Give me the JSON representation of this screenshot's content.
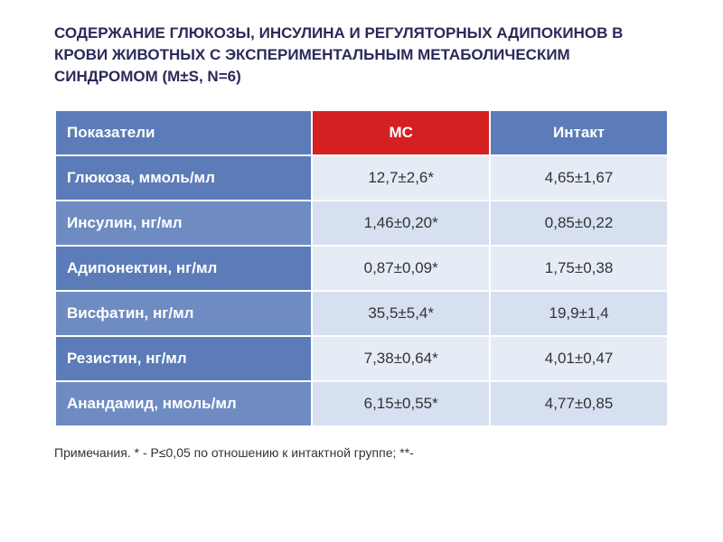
{
  "title": "СОДЕРЖАНИЕ ГЛЮКОЗЫ, ИНСУЛИНА И РЕГУЛЯТОРНЫХ АДИПОКИНОВ В КРОВИ ЖИВОТНЫХ С ЭКСПЕРИМЕНТАЛЬНЫМ МЕТАБОЛИЧЕСКИМ СИНДРОМОМ (M±s, n=6)",
  "table": {
    "type": "table",
    "header": {
      "label_col": "Показатели",
      "ms_col": "МС",
      "intact_col": "Интакт",
      "label_bg": "#5b7cb8",
      "ms_bg": "#d42020",
      "intact_bg": "#5b7cb8",
      "header_color": "#ffffff"
    },
    "rows": [
      {
        "label": "Глюкоза, ммоль/мл",
        "ms": "12,7±2,6*",
        "intact": "4,65±1,67",
        "label_bg": "#5b7cb8",
        "value_bg": "#e6ecf5"
      },
      {
        "label": "Инсулин, нг/мл",
        "ms": "1,46±0,20*",
        "intact": "0,85±0,22",
        "label_bg": "#6e8cc2",
        "value_bg": "#d6e0f0"
      },
      {
        "label": "Адипонектин, нг/мл",
        "ms": "0,87±0,09*",
        "intact": "1,75±0,38",
        "label_bg": "#5b7cb8",
        "value_bg": "#e6ecf5"
      },
      {
        "label": "Висфатин, нг/мл",
        "ms": "35,5±5,4*",
        "intact": "19,9±1,4",
        "label_bg": "#6e8cc2",
        "value_bg": "#d6e0f0"
      },
      {
        "label": "Резистин, нг/мл",
        "ms": "7,38±0,64*",
        "intact": "4,01±0,47",
        "label_bg": "#5b7cb8",
        "value_bg": "#e6ecf5"
      },
      {
        "label": "Анандамид, нмоль/мл",
        "ms": "6,15±0,55*",
        "intact": "4,77±0,85",
        "label_bg": "#6e8cc2",
        "value_bg": "#d6e0f0"
      }
    ],
    "label_fontsize": 17,
    "value_fontsize": 17,
    "label_color": "#ffffff",
    "value_color": "#333333",
    "border_spacing": 2,
    "col_widths": [
      "42%",
      "29%",
      "29%"
    ]
  },
  "note": "Примечания. * - Р≤0,05 по отношению к интактной группе; **-",
  "background_color": "#ffffff",
  "title_color": "#2a2a5a",
  "title_fontsize": 17,
  "note_fontsize": 14
}
